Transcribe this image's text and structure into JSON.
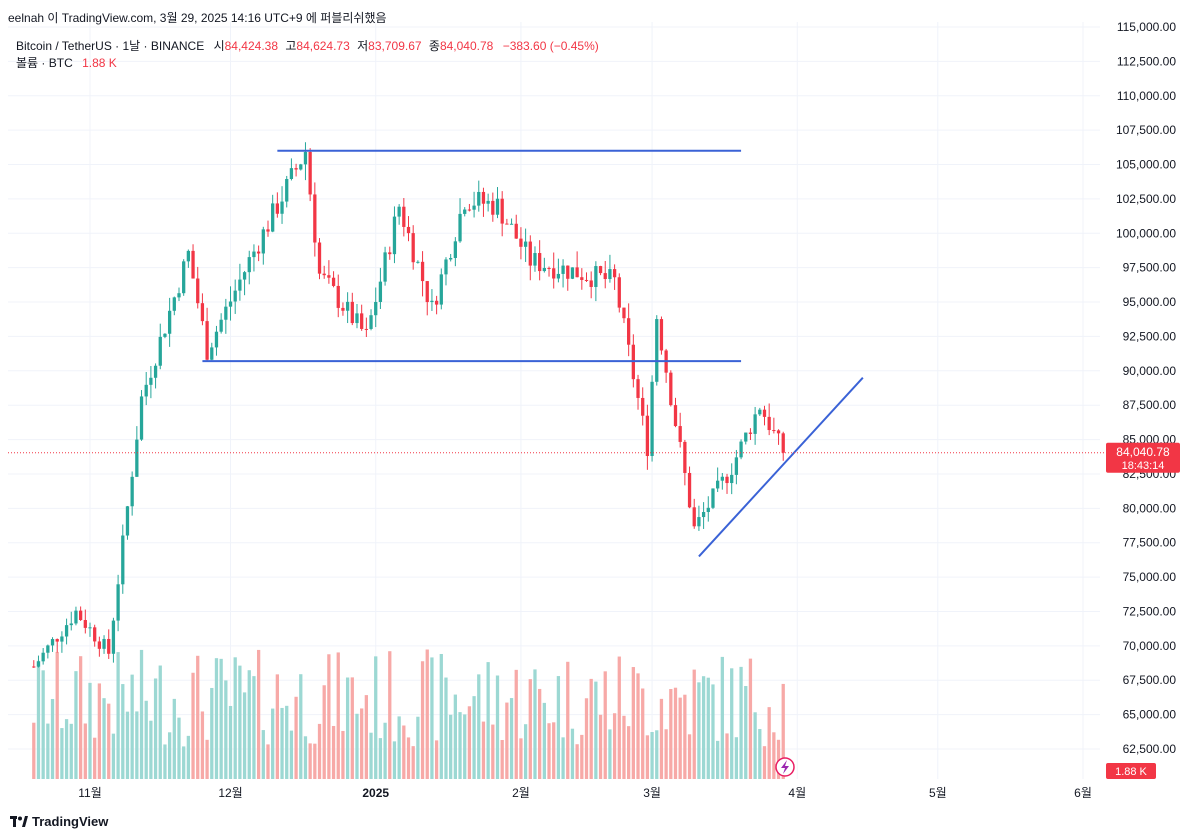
{
  "caption": "eelnah 이 TradingView.com, 3월 29, 2025 14:16 UTC+9 에 퍼블리쉬했음",
  "symbol": {
    "name": "Bitcoin / TetherUS · 1날 · BINANCE",
    "open_label": "시",
    "open": "84,424.38",
    "high_label": "고",
    "high": "84,624.73",
    "low_label": "저",
    "low": "83,709.67",
    "close_label": "종",
    "close": "84,040.78",
    "change": "−383.60 (−0.45%)"
  },
  "volume_label": "볼륨 · BTC",
  "volume_value": "1.88 K",
  "price_tag": "84,040.78",
  "countdown": "18:43:14",
  "volume_tag": "1.88 K",
  "brand": "TradingView",
  "colors": {
    "up": "#26a69a",
    "down": "#f23645",
    "volume_up": "#9cd8d3",
    "volume_down": "#f7a9a7",
    "trendline": "#3a62d6"
  },
  "chart_data": {
    "type": "candlestick",
    "title": "Bitcoin / TetherUS · 1날 · BINANCE",
    "ylim": [
      60000,
      115000
    ],
    "y_ticks": [
      "62,500.00",
      "65,000.00",
      "67,500.00",
      "70,000.00",
      "72,500.00",
      "75,000.00",
      "77,500.00",
      "80,000.00",
      "82,500.00",
      "85,000.00",
      "87,500.00",
      "90,000.00",
      "92,500.00",
      "95,000.00",
      "97,500.00",
      "100,000.00",
      "102,500.00",
      "105,000.00",
      "107,500.00",
      "110,000.00",
      "112,500.00",
      "115,000.00"
    ],
    "x_ticks": [
      "11월",
      "12월",
      "2025",
      "2월",
      "3월",
      "4월",
      "5월",
      "6월"
    ],
    "approx_daily_close_path": [
      {
        "date": "2024-10-20",
        "close": 68500
      },
      {
        "date": "2024-10-29",
        "close": 72500
      },
      {
        "date": "2024-11-05",
        "close": 69500
      },
      {
        "date": "2024-11-12",
        "close": 88000
      },
      {
        "date": "2024-11-22",
        "close": 98500
      },
      {
        "date": "2024-11-26",
        "close": 91500
      },
      {
        "date": "2024-12-05",
        "close": 98000
      },
      {
        "date": "2024-12-17",
        "close": 106000
      },
      {
        "date": "2024-12-20",
        "close": 97000
      },
      {
        "date": "2024-12-30",
        "close": 92500
      },
      {
        "date": "2025-01-06",
        "close": 102000
      },
      {
        "date": "2025-01-13",
        "close": 94500
      },
      {
        "date": "2025-01-20",
        "close": 102500
      },
      {
        "date": "2025-01-27",
        "close": 102000
      },
      {
        "date": "2025-02-03",
        "close": 98000
      },
      {
        "date": "2025-02-21",
        "close": 96500
      },
      {
        "date": "2025-02-28",
        "close": 84500
      },
      {
        "date": "2025-03-02",
        "close": 94000
      },
      {
        "date": "2025-03-10",
        "close": 78500
      },
      {
        "date": "2025-03-18",
        "close": 83000
      },
      {
        "date": "2025-03-24",
        "close": 87500
      },
      {
        "date": "2025-03-29",
        "close": 84040.78
      }
    ],
    "range_box": {
      "upper": 106000,
      "lower": 90700
    },
    "ascending_trendline": [
      {
        "date": "2025-03-11",
        "price": 76500
      },
      {
        "date": "2025-04-15",
        "price": 89500
      }
    ],
    "last_price": 84040.78
  }
}
